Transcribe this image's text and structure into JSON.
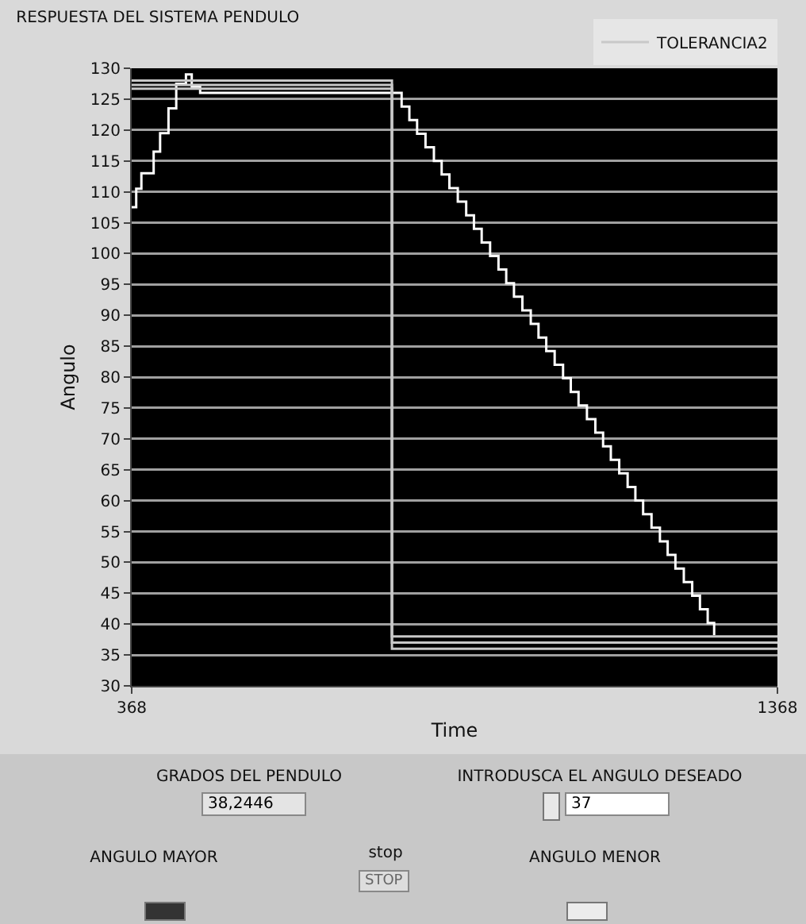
{
  "chart_data": {
    "type": "step",
    "title": "RESPUESTA DEL SISTEMA PENDULO",
    "xlabel": "Time",
    "ylabel": "Angulo",
    "xlim": [
      368,
      1368
    ],
    "xticks": [
      368,
      1368
    ],
    "ylim": [
      30,
      130
    ],
    "yticks": [
      30,
      35,
      40,
      45,
      50,
      55,
      60,
      65,
      70,
      75,
      80,
      85,
      90,
      95,
      100,
      105,
      110,
      115,
      120,
      125,
      130
    ],
    "grid": "y",
    "legend": "top right",
    "line_style": "solid",
    "marker": "none",
    "series": [
      {
        "color": "#ffffff",
        "x": [
          368,
          375,
          383,
          402,
          412,
          425,
          437,
          452,
          461,
          474,
          773,
          786,
          798,
          810,
          823,
          836,
          848,
          860,
          873,
          886,
          898,
          910,
          923,
          936,
          948,
          960,
          973,
          986,
          998,
          1010,
          1023,
          1036,
          1048,
          1060,
          1073,
          1086,
          1098,
          1110,
          1123,
          1136,
          1148,
          1160,
          1173,
          1186,
          1198,
          1210,
          1223,
          1236,
          1248,
          1260,
          1270
        ],
        "values": [
          107.5,
          110.5,
          113,
          116.5,
          119.5,
          123.5,
          127.5,
          129,
          127,
          126,
          126,
          123.8,
          121.6,
          119.4,
          117.2,
          115,
          112.8,
          110.6,
          108.4,
          106.2,
          104,
          101.8,
          99.6,
          97.4,
          95.2,
          93,
          90.8,
          88.6,
          86.4,
          84.2,
          82,
          79.8,
          77.6,
          75.4,
          73.2,
          71,
          68.8,
          66.6,
          64.4,
          62.2,
          60,
          57.8,
          55.6,
          53.4,
          51.2,
          49,
          46.8,
          44.6,
          42.4,
          40.2,
          38.2
        ]
      },
      {
        "name": "TOLERANCIA2",
        "type": "line",
        "color": "#c8c8c8",
        "x": [
          368,
          771,
          771,
          1368,
          null,
          368,
          771,
          771,
          1368,
          null,
          368,
          771,
          771,
          1368
        ],
        "values": [
          128,
          128,
          38,
          38,
          null,
          127.3,
          127.3,
          37,
          37,
          null,
          126.7,
          126.7,
          36,
          36
        ]
      }
    ],
    "annotations": [
      "GRADOS DEL PENDULO",
      "38,2446",
      "INTRODUSCA EL ANGULO DESEADO",
      "37",
      "ANGULO MAYOR",
      "stop",
      "STOP",
      "ANGULO MENOR"
    ]
  }
}
